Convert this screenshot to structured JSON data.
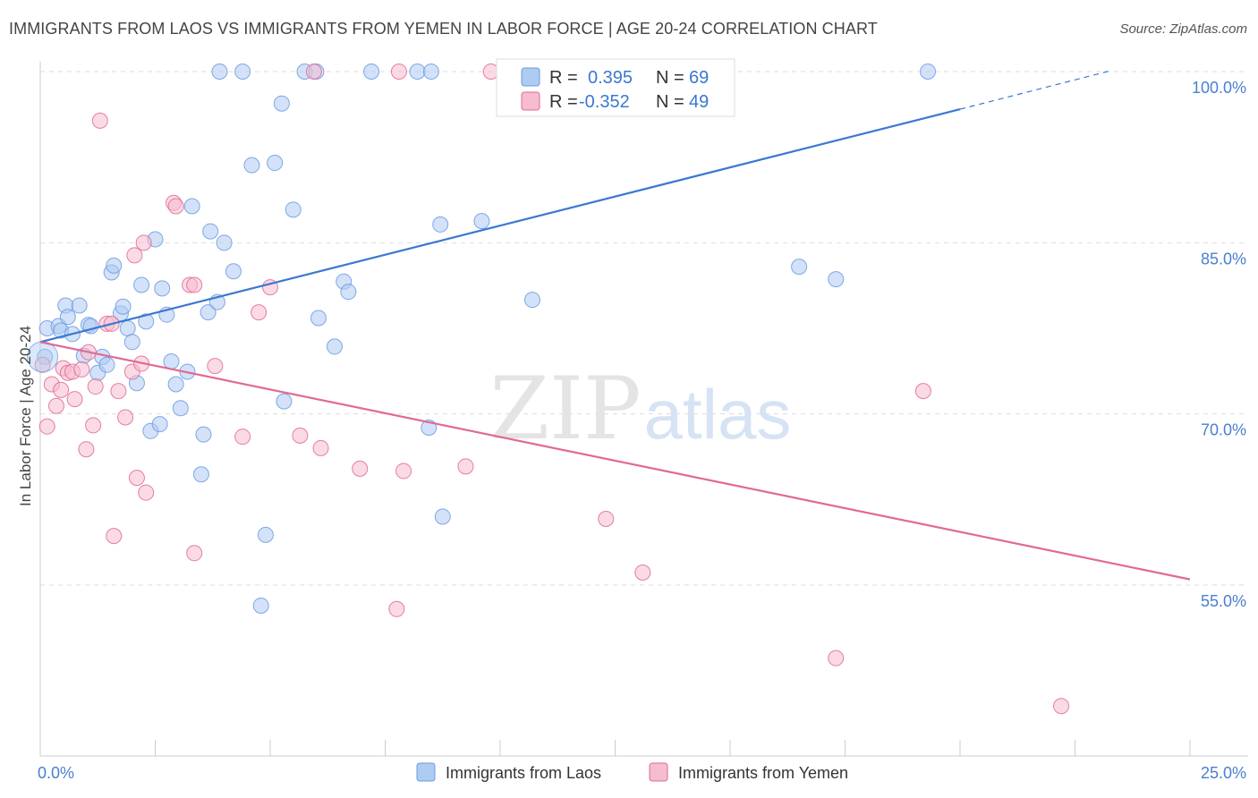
{
  "title": "IMMIGRANTS FROM LAOS VS IMMIGRANTS FROM YEMEN IN LABOR FORCE | AGE 20-24 CORRELATION CHART",
  "source": "Source: ZipAtlas.com",
  "watermark": {
    "zip": "ZIP",
    "atlas": "atlas"
  },
  "colors": {
    "laos": "#6a9be0",
    "laos_fill": "#aecbf2",
    "yemen": "#e06a94",
    "yemen_fill": "#f6bcd0",
    "laos_line": "#3a78d0",
    "yemen_line": "#e06a94",
    "tick_text": "#4a7fd0"
  },
  "legend": {
    "r_label": "R =",
    "n_label": "N =",
    "laos": {
      "r": "0.395",
      "n": "69"
    },
    "yemen": {
      "r": "-0.352",
      "n": "49"
    }
  },
  "chart_data": {
    "type": "scatter",
    "ylabel": "In Labor Force | Age 20-24",
    "xlim": [
      0,
      25
    ],
    "ylim": [
      38,
      101
    ],
    "x_ticks": [
      {
        "value": 0,
        "label": "0.0%"
      },
      {
        "value": 25,
        "label": "25.0%"
      }
    ],
    "y_ticks": [
      {
        "value": 55,
        "label": "55.0%"
      },
      {
        "value": 70,
        "label": "70.0%"
      },
      {
        "value": 85,
        "label": "85.0%"
      },
      {
        "value": 100,
        "label": "100.0%"
      }
    ],
    "grid": true,
    "series": [
      {
        "name": "Immigrants from Laos",
        "trend": {
          "x": [
            0,
            20
          ],
          "y": [
            76.3,
            96.7
          ],
          "dashed_to": {
            "x": 23.3,
            "y": 100.1
          }
        },
        "points": [
          [
            0.1,
            75.0
          ],
          [
            0.15,
            77.5
          ],
          [
            0.4,
            77.7
          ],
          [
            0.45,
            77.3
          ],
          [
            0.55,
            79.5
          ],
          [
            0.6,
            78.5
          ],
          [
            0.7,
            77.0
          ],
          [
            0.85,
            79.5
          ],
          [
            0.95,
            75.1
          ],
          [
            1.05,
            77.8
          ],
          [
            1.1,
            77.7
          ],
          [
            1.25,
            73.6
          ],
          [
            1.35,
            75.0
          ],
          [
            1.45,
            74.3
          ],
          [
            1.55,
            82.4
          ],
          [
            1.6,
            83.0
          ],
          [
            1.75,
            78.8
          ],
          [
            1.8,
            79.4
          ],
          [
            1.9,
            77.5
          ],
          [
            2.0,
            76.3
          ],
          [
            2.1,
            72.7
          ],
          [
            2.2,
            81.3
          ],
          [
            2.3,
            78.1
          ],
          [
            2.4,
            68.5
          ],
          [
            2.5,
            85.3
          ],
          [
            2.6,
            69.1
          ],
          [
            2.65,
            81.0
          ],
          [
            2.75,
            78.7
          ],
          [
            2.85,
            74.6
          ],
          [
            2.95,
            72.6
          ],
          [
            3.05,
            70.5
          ],
          [
            3.2,
            73.7
          ],
          [
            3.3,
            88.2
          ],
          [
            3.5,
            64.7
          ],
          [
            3.55,
            68.2
          ],
          [
            3.65,
            78.9
          ],
          [
            3.7,
            86.0
          ],
          [
            3.85,
            79.8
          ],
          [
            4.0,
            85.0
          ],
          [
            4.2,
            82.5
          ],
          [
            3.9,
            100.0
          ],
          [
            4.4,
            100.0
          ],
          [
            4.6,
            91.8
          ],
          [
            4.8,
            53.2
          ],
          [
            4.9,
            59.4
          ],
          [
            5.1,
            92.0
          ],
          [
            5.3,
            71.1
          ],
          [
            5.25,
            97.2
          ],
          [
            5.5,
            87.9
          ],
          [
            5.75,
            100.0
          ],
          [
            6.0,
            100.0
          ],
          [
            6.05,
            78.4
          ],
          [
            6.4,
            75.9
          ],
          [
            6.6,
            81.6
          ],
          [
            6.7,
            80.7
          ],
          [
            7.2,
            100.0
          ],
          [
            8.2,
            100.0
          ],
          [
            8.45,
            68.8
          ],
          [
            8.5,
            100.0
          ],
          [
            8.7,
            86.6
          ],
          [
            8.75,
            61.0
          ],
          [
            9.6,
            86.9
          ],
          [
            10.4,
            100.0
          ],
          [
            10.7,
            80.0
          ],
          [
            11.6,
            100.0
          ],
          [
            14.9,
            100.0
          ],
          [
            16.5,
            82.9
          ],
          [
            17.3,
            81.8
          ],
          [
            19.3,
            100.0
          ]
        ]
      },
      {
        "name": "Immigrants from Yemen",
        "trend": {
          "x": [
            0,
            25
          ],
          "y": [
            76.3,
            55.5
          ]
        },
        "points": [
          [
            0.05,
            74.3
          ],
          [
            0.15,
            68.9
          ],
          [
            0.25,
            72.6
          ],
          [
            0.35,
            70.7
          ],
          [
            0.45,
            72.1
          ],
          [
            0.5,
            74.0
          ],
          [
            0.6,
            73.6
          ],
          [
            0.7,
            73.7
          ],
          [
            0.75,
            71.3
          ],
          [
            0.9,
            73.9
          ],
          [
            1.0,
            66.9
          ],
          [
            1.05,
            75.4
          ],
          [
            1.15,
            69.0
          ],
          [
            1.2,
            72.4
          ],
          [
            1.3,
            95.7
          ],
          [
            1.45,
            77.9
          ],
          [
            1.55,
            77.9
          ],
          [
            1.6,
            59.3
          ],
          [
            1.7,
            72.0
          ],
          [
            1.85,
            69.7
          ],
          [
            2.0,
            73.7
          ],
          [
            2.05,
            83.9
          ],
          [
            2.1,
            64.4
          ],
          [
            2.2,
            74.4
          ],
          [
            2.25,
            85.0
          ],
          [
            2.3,
            63.1
          ],
          [
            2.9,
            88.5
          ],
          [
            2.95,
            88.2
          ],
          [
            3.25,
            81.3
          ],
          [
            3.35,
            81.3
          ],
          [
            3.35,
            57.8
          ],
          [
            3.8,
            74.2
          ],
          [
            4.4,
            68.0
          ],
          [
            4.75,
            78.9
          ],
          [
            5.0,
            81.1
          ],
          [
            5.65,
            68.1
          ],
          [
            5.95,
            100.0
          ],
          [
            6.1,
            67.0
          ],
          [
            6.95,
            65.2
          ],
          [
            7.8,
            100.0
          ],
          [
            7.75,
            52.9
          ],
          [
            7.9,
            65.0
          ],
          [
            9.25,
            65.4
          ],
          [
            9.8,
            100.0
          ],
          [
            12.3,
            60.8
          ],
          [
            13.1,
            56.1
          ],
          [
            17.3,
            48.6
          ],
          [
            19.2,
            72.0
          ],
          [
            22.2,
            44.4
          ]
        ]
      }
    ]
  }
}
